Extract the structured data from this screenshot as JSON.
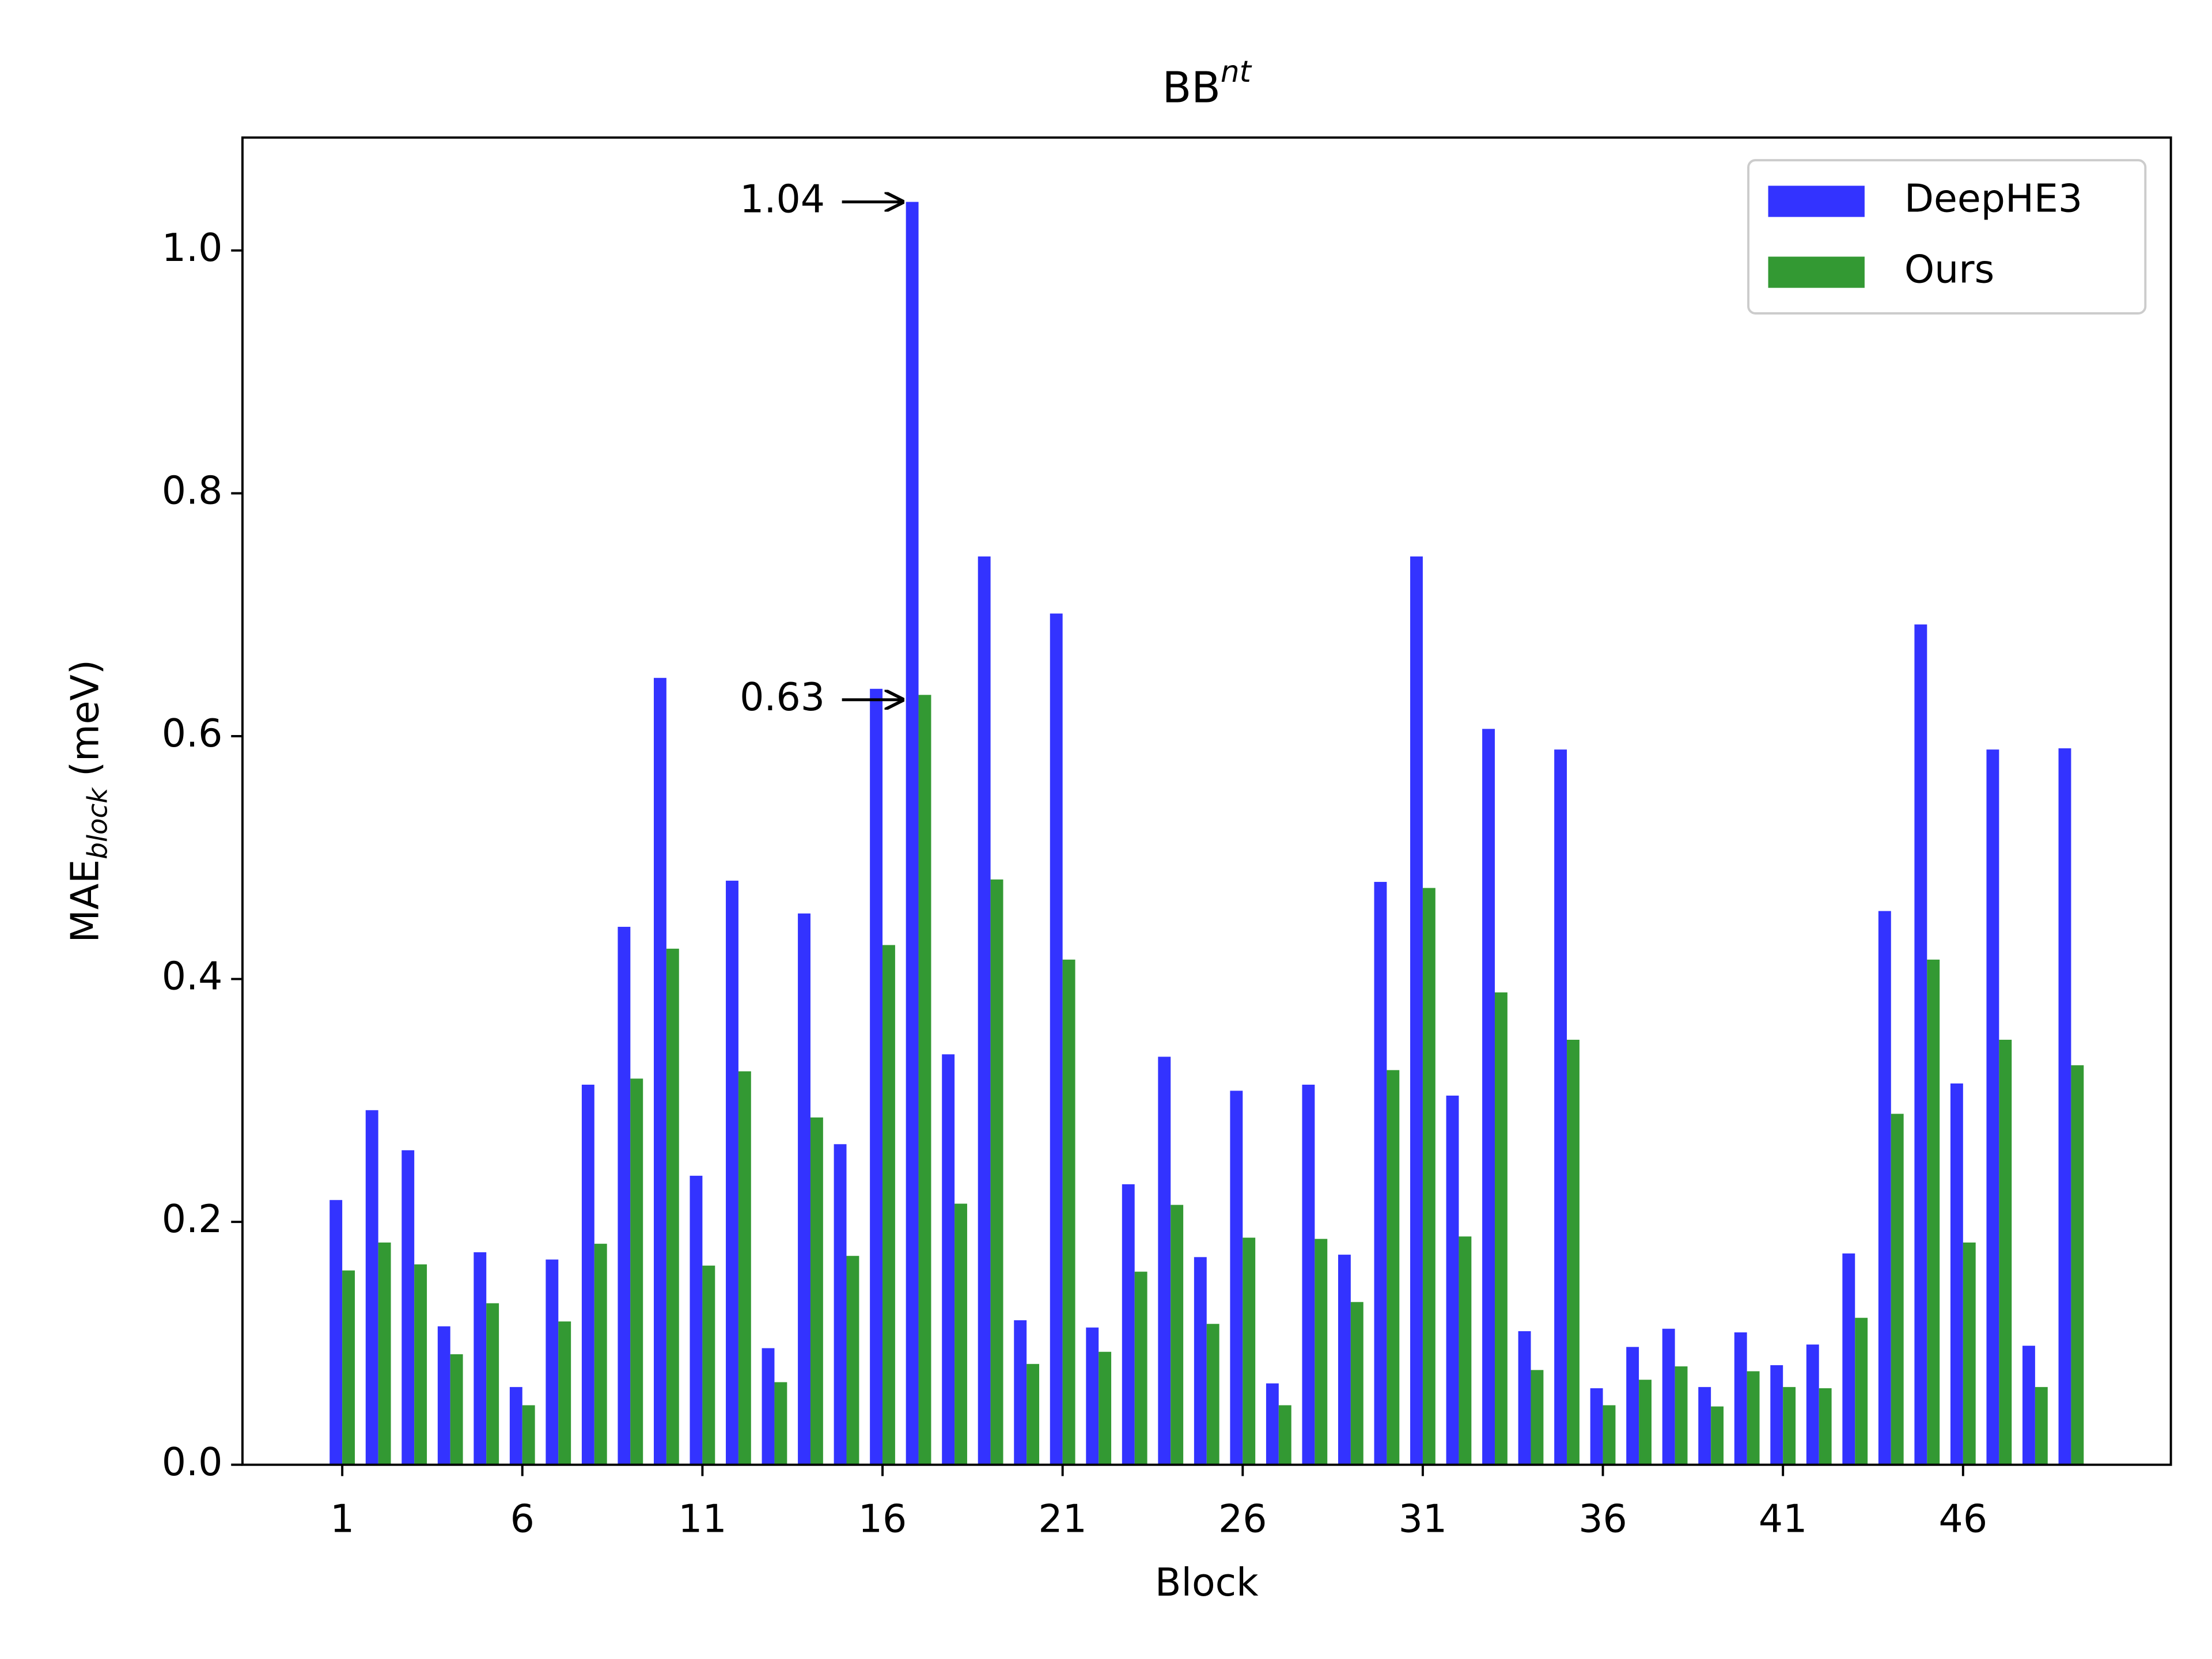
{
  "chart_data": {
    "type": "bar",
    "title": "BB",
    "title_sup": "nt",
    "xlabel": "Block",
    "ylabel": {
      "main": "MAE",
      "sub": "block",
      "unit": "(meV)"
    },
    "x": [
      1,
      2,
      3,
      4,
      5,
      6,
      7,
      8,
      9,
      10,
      11,
      12,
      13,
      14,
      15,
      16,
      17,
      18,
      19,
      20,
      21,
      22,
      23,
      24,
      25,
      26,
      27,
      28,
      29,
      30,
      31,
      32,
      33,
      34,
      35,
      36,
      37,
      38,
      39,
      40,
      41,
      42,
      43,
      44,
      45,
      46,
      47,
      48,
      49
    ],
    "series": [
      {
        "name": "DeepHE3",
        "color": "#3333ff",
        "values": [
          0.218,
          0.292,
          0.259,
          0.114,
          0.175,
          0.064,
          0.169,
          0.313,
          0.443,
          0.648,
          0.238,
          0.481,
          0.096,
          0.454,
          0.264,
          0.639,
          1.04,
          0.338,
          0.748,
          0.119,
          0.701,
          0.113,
          0.231,
          0.336,
          0.171,
          0.308,
          0.067,
          0.313,
          0.173,
          0.48,
          0.748,
          0.304,
          0.606,
          0.11,
          0.589,
          0.063,
          0.097,
          0.112,
          0.064,
          0.109,
          0.082,
          0.099,
          0.174,
          0.456,
          0.692,
          0.314,
          0.589,
          0.098,
          0.59
        ]
      },
      {
        "name": "Ours",
        "color": "#339933",
        "values": [
          0.16,
          0.183,
          0.165,
          0.091,
          0.133,
          0.049,
          0.118,
          0.182,
          0.318,
          0.425,
          0.164,
          0.324,
          0.068,
          0.286,
          0.172,
          0.428,
          0.634,
          0.215,
          0.482,
          0.083,
          0.416,
          0.093,
          0.159,
          0.214,
          0.116,
          0.187,
          0.049,
          0.186,
          0.134,
          0.325,
          0.475,
          0.188,
          0.389,
          0.078,
          0.35,
          0.049,
          0.07,
          0.081,
          0.048,
          0.077,
          0.064,
          0.063,
          0.121,
          0.289,
          0.416,
          0.183,
          0.35,
          0.064,
          0.329
        ]
      }
    ],
    "annotations": [
      {
        "label": 1.04,
        "block": 17
      },
      {
        "label": 0.63,
        "block": 17
      }
    ],
    "xlim": [
      -1.77,
      51.77
    ],
    "xticks": [
      1,
      6,
      11,
      16,
      21,
      26,
      31,
      36,
      41,
      46
    ],
    "ylim": [
      0,
      1.093
    ],
    "yticks": [
      {
        "value": 0,
        "label": "0.0"
      },
      0.2,
      0.4,
      0.6,
      0.8,
      {
        "value": 1,
        "label": "1.0"
      }
    ],
    "bar_width": 0.35,
    "legend": "upper right"
  }
}
